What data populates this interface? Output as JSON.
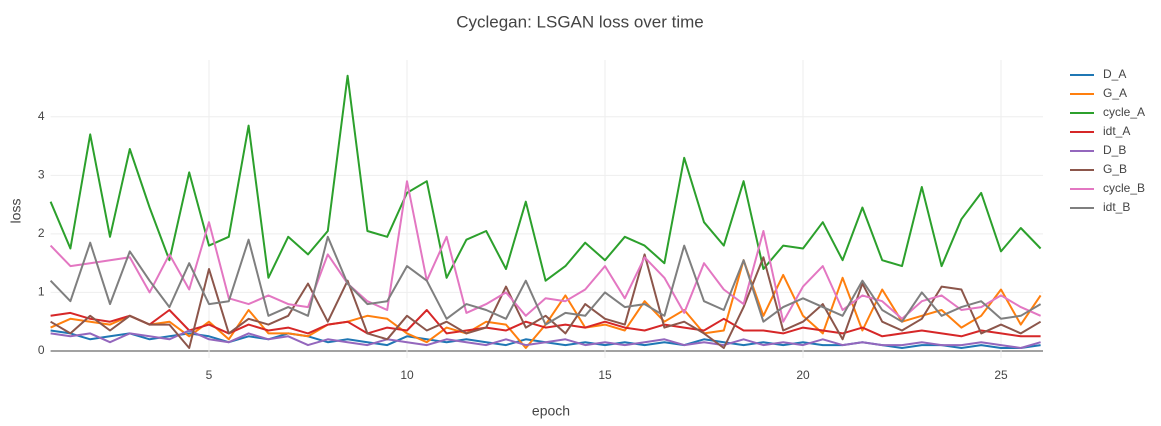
{
  "chart_data": {
    "type": "line",
    "title": "Cyclegan: LSGAN loss over time",
    "x_label": "epoch",
    "y_label": "loss",
    "x": [
      1,
      1.5,
      2,
      2.5,
      3,
      3.5,
      4,
      4.5,
      5,
      5.5,
      6,
      6.5,
      7,
      7.5,
      8,
      8.5,
      9,
      9.5,
      10,
      10.5,
      11,
      11.5,
      12,
      12.5,
      13,
      13.5,
      14,
      14.5,
      15,
      15.5,
      16,
      16.5,
      17,
      17.5,
      18,
      18.5,
      19,
      19.5,
      20,
      20.5,
      21,
      21.5,
      22,
      22.5,
      23,
      23.5,
      24,
      24.5,
      25,
      25.5,
      26
    ],
    "xlim": [
      1,
      26.06
    ],
    "ylim": [
      -0.12,
      4.97
    ],
    "xticks": [
      5,
      10,
      15,
      20,
      25
    ],
    "yticks": [
      0,
      1,
      2,
      3,
      4
    ],
    "grid": true,
    "legend": "right",
    "series": [
      {
        "name": "D_A",
        "color": "#1f77b4",
        "values": [
          0.35,
          0.3,
          0.2,
          0.25,
          0.3,
          0.2,
          0.25,
          0.3,
          0.25,
          0.15,
          0.25,
          0.2,
          0.3,
          0.25,
          0.15,
          0.2,
          0.15,
          0.1,
          0.25,
          0.2,
          0.15,
          0.2,
          0.15,
          0.1,
          0.2,
          0.15,
          0.1,
          0.15,
          0.1,
          0.15,
          0.1,
          0.15,
          0.1,
          0.2,
          0.15,
          0.1,
          0.15,
          0.1,
          0.15,
          0.1,
          0.1,
          0.15,
          0.1,
          0.05,
          0.1,
          0.1,
          0.05,
          0.1,
          0.05,
          0.05,
          0.1
        ]
      },
      {
        "name": "G_A",
        "color": "#ff7f0e",
        "values": [
          0.4,
          0.55,
          0.5,
          0.45,
          0.6,
          0.45,
          0.5,
          0.25,
          0.5,
          0.2,
          0.7,
          0.3,
          0.3,
          0.25,
          0.45,
          0.5,
          0.6,
          0.55,
          0.3,
          0.15,
          0.4,
          0.3,
          0.5,
          0.45,
          0.05,
          0.45,
          0.95,
          0.4,
          0.45,
          0.35,
          0.85,
          0.5,
          0.7,
          0.3,
          0.35,
          1.55,
          0.6,
          1.3,
          0.6,
          0.3,
          1.25,
          0.35,
          1.05,
          0.5,
          0.6,
          0.7,
          0.4,
          0.6,
          1.05,
          0.45,
          0.95
        ]
      },
      {
        "name": "cycle_A",
        "color": "#2ca02c",
        "values": [
          2.55,
          1.75,
          3.7,
          1.95,
          3.45,
          2.45,
          1.55,
          3.05,
          1.8,
          1.95,
          3.85,
          1.25,
          1.95,
          1.65,
          2.05,
          4.7,
          2.05,
          1.95,
          2.7,
          2.9,
          1.25,
          1.9,
          2.05,
          1.4,
          2.55,
          1.2,
          1.45,
          1.85,
          1.55,
          1.95,
          1.8,
          1.5,
          3.3,
          2.2,
          1.8,
          2.9,
          1.4,
          1.8,
          1.75,
          2.2,
          1.55,
          2.45,
          1.55,
          1.45,
          2.8,
          1.45,
          2.25,
          2.7,
          1.7,
          2.1,
          1.75
        ]
      },
      {
        "name": "idt_A",
        "color": "#d62728",
        "values": [
          0.6,
          0.65,
          0.55,
          0.5,
          0.6,
          0.45,
          0.7,
          0.35,
          0.45,
          0.3,
          0.45,
          0.35,
          0.4,
          0.3,
          0.45,
          0.5,
          0.3,
          0.4,
          0.35,
          0.7,
          0.3,
          0.35,
          0.4,
          0.35,
          0.5,
          0.4,
          0.45,
          0.4,
          0.5,
          0.4,
          0.35,
          0.45,
          0.4,
          0.35,
          0.55,
          0.35,
          0.35,
          0.3,
          0.4,
          0.35,
          0.3,
          0.4,
          0.25,
          0.3,
          0.35,
          0.3,
          0.25,
          0.35,
          0.3,
          0.25,
          0.25
        ]
      },
      {
        "name": "D_B",
        "color": "#9467bd",
        "values": [
          0.3,
          0.25,
          0.3,
          0.15,
          0.3,
          0.25,
          0.2,
          0.35,
          0.2,
          0.15,
          0.3,
          0.2,
          0.25,
          0.1,
          0.2,
          0.15,
          0.1,
          0.2,
          0.15,
          0.1,
          0.2,
          0.15,
          0.1,
          0.2,
          0.1,
          0.15,
          0.2,
          0.1,
          0.15,
          0.1,
          0.15,
          0.2,
          0.1,
          0.15,
          0.1,
          0.2,
          0.1,
          0.15,
          0.1,
          0.2,
          0.1,
          0.15,
          0.1,
          0.1,
          0.15,
          0.1,
          0.1,
          0.15,
          0.1,
          0.05,
          0.15
        ]
      },
      {
        "name": "G_B",
        "color": "#8c564b",
        "values": [
          0.5,
          0.3,
          0.6,
          0.35,
          0.6,
          0.45,
          0.45,
          0.05,
          1.4,
          0.3,
          0.55,
          0.45,
          0.6,
          1.15,
          0.5,
          1.2,
          0.3,
          0.2,
          0.6,
          0.35,
          0.5,
          0.3,
          0.4,
          1.1,
          0.4,
          0.6,
          0.3,
          0.8,
          0.55,
          0.45,
          1.65,
          0.4,
          0.5,
          0.3,
          0.05,
          0.75,
          1.6,
          0.35,
          0.5,
          0.8,
          0.2,
          1.15,
          0.5,
          0.35,
          0.55,
          1.1,
          1.05,
          0.3,
          0.45,
          0.3,
          0.5
        ]
      },
      {
        "name": "cycle_B",
        "color": "#e377c2",
        "values": [
          1.8,
          1.45,
          1.5,
          1.55,
          1.6,
          1.0,
          1.65,
          1.05,
          2.2,
          0.9,
          0.8,
          0.95,
          0.8,
          0.75,
          1.65,
          1.15,
          0.85,
          0.7,
          2.9,
          1.2,
          1.95,
          0.65,
          0.8,
          1.0,
          0.6,
          0.9,
          0.85,
          1.05,
          1.45,
          0.9,
          1.6,
          1.25,
          0.65,
          1.5,
          1.05,
          0.8,
          2.05,
          0.5,
          1.1,
          1.45,
          0.7,
          0.95,
          0.85,
          0.55,
          0.85,
          0.95,
          0.7,
          0.75,
          0.95,
          0.75,
          0.6
        ]
      },
      {
        "name": "idt_B",
        "color": "#7f7f7f",
        "values": [
          1.2,
          0.85,
          1.85,
          0.8,
          1.7,
          1.2,
          0.75,
          1.5,
          0.8,
          0.85,
          1.9,
          0.6,
          0.75,
          0.6,
          1.95,
          1.15,
          0.8,
          0.85,
          1.45,
          1.2,
          0.55,
          0.8,
          0.7,
          0.55,
          1.2,
          0.45,
          0.65,
          0.6,
          1.0,
          0.75,
          0.8,
          0.6,
          1.8,
          0.85,
          0.7,
          1.55,
          0.5,
          0.75,
          0.9,
          0.75,
          0.6,
          1.2,
          0.7,
          0.5,
          1.0,
          0.6,
          0.75,
          0.85,
          0.55,
          0.6,
          0.8
        ]
      }
    ]
  }
}
